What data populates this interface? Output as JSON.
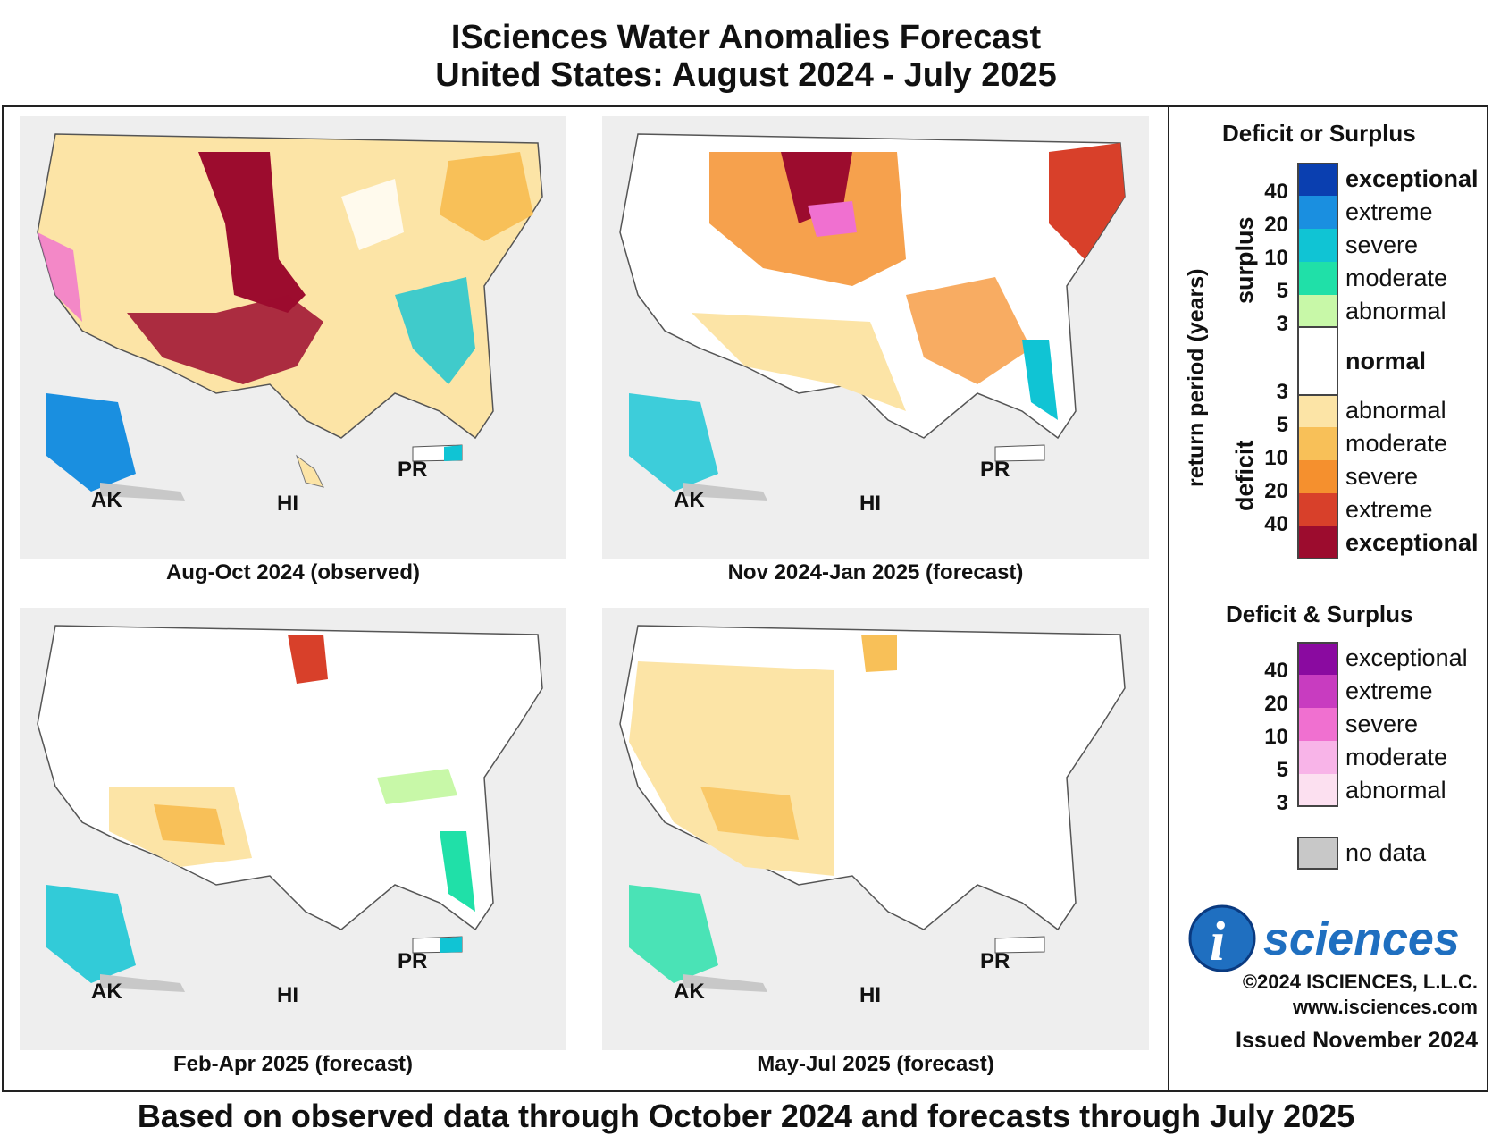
{
  "title": {
    "line1": "ISciences Water Anomalies Forecast",
    "line2": "United States: August 2024 - July 2025"
  },
  "panels": [
    {
      "caption": "Aug-Oct 2024 (observed)",
      "ak": "AK",
      "hi": "HI",
      "pr": "PR"
    },
    {
      "caption": "Nov 2024-Jan 2025 (forecast)",
      "ak": "AK",
      "hi": "HI",
      "pr": "PR"
    },
    {
      "caption": "Feb-Apr 2025 (forecast)",
      "ak": "AK",
      "hi": "HI",
      "pr": "PR"
    },
    {
      "caption": "May-Jul 2025 (forecast)",
      "ak": "AK",
      "hi": "HI",
      "pr": "PR"
    }
  ],
  "legend": {
    "heading1": "Deficit or Surplus",
    "axis_label": "return period (years)",
    "surplus_label": "surplus",
    "deficit_label": "deficit",
    "surplus_items": [
      {
        "label": "exceptional",
        "color": "#0a3fb0"
      },
      {
        "label": "extreme",
        "color": "#1a8fe0"
      },
      {
        "label": "severe",
        "color": "#10c4d4"
      },
      {
        "label": "moderate",
        "color": "#20e0a8"
      },
      {
        "label": "abnormal",
        "color": "#c8f8a8"
      }
    ],
    "normal_label": "normal",
    "deficit_items": [
      {
        "label": "abnormal",
        "color": "#fce4a6"
      },
      {
        "label": "moderate",
        "color": "#f8c058"
      },
      {
        "label": "severe",
        "color": "#f5902e"
      },
      {
        "label": "extreme",
        "color": "#d8402a"
      },
      {
        "label": "exceptional",
        "color": "#9c0c2e"
      }
    ],
    "surplus_nums": [
      "40",
      "20",
      "10",
      "5",
      "3"
    ],
    "deficit_nums": [
      "3",
      "5",
      "10",
      "20",
      "40"
    ],
    "heading2": "Deficit & Surplus",
    "both_items": [
      {
        "label": "exceptional",
        "color": "#8a0aa0"
      },
      {
        "label": "extreme",
        "color": "#c83cc0"
      },
      {
        "label": "severe",
        "color": "#f070d0"
      },
      {
        "label": "moderate",
        "color": "#f8b4e8"
      },
      {
        "label": "abnormal",
        "color": "#fce0f0"
      }
    ],
    "both_nums": [
      "40",
      "20",
      "10",
      "5",
      "3"
    ],
    "no_data_label": "no data",
    "no_data_color": "#c8c8c8"
  },
  "branding": {
    "logo_i": "i",
    "logo_text": "sciences",
    "copyright": "©2024 ISCIENCES, L.L.C.",
    "website": "www.isciences.com",
    "issued": "Issued November 2024"
  },
  "footer": "Based on observed data through October 2024 and forecasts through July 2025"
}
